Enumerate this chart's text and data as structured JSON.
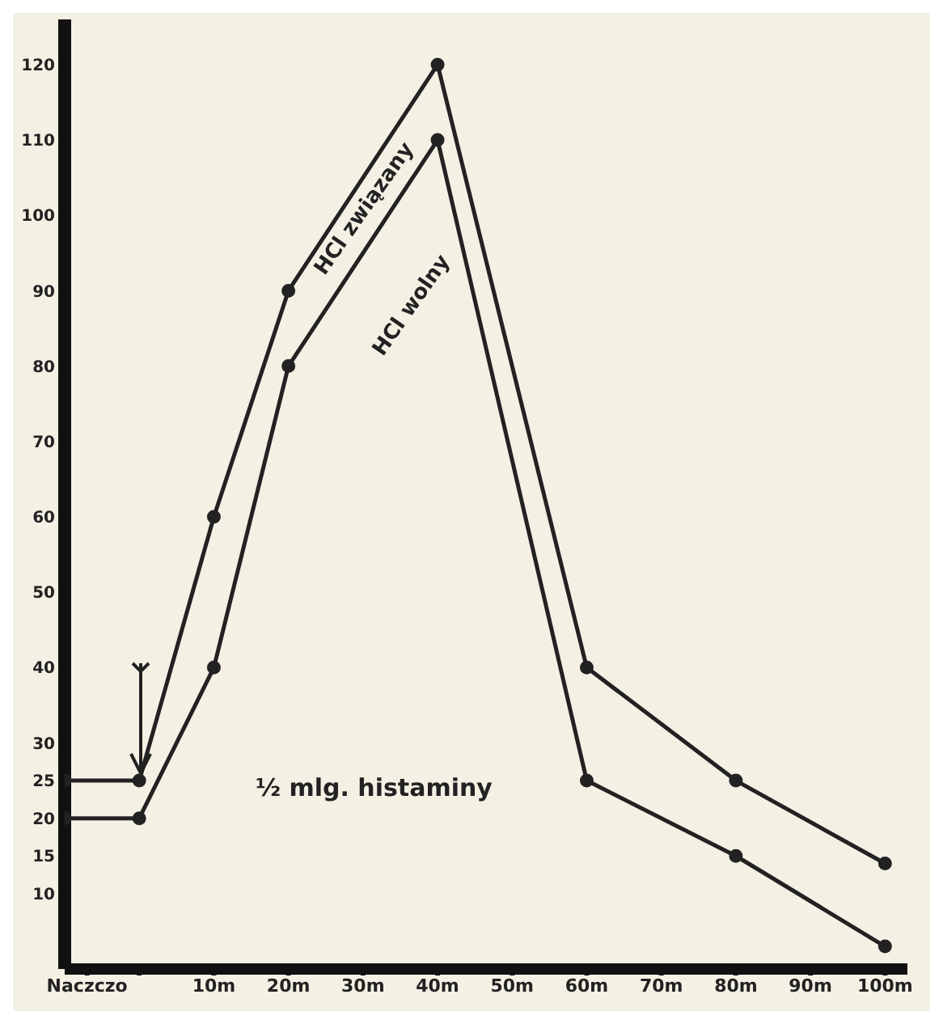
{
  "chart_data": {
    "type": "line",
    "x": [
      -10,
      0,
      10,
      20,
      40,
      60,
      80,
      100
    ],
    "xlim": [
      -10,
      103
    ],
    "xticks": [
      {
        "value": -7,
        "label": "Naczczo"
      },
      {
        "value": 0,
        "label": null
      },
      {
        "value": 10,
        "label": "10m"
      },
      {
        "value": 20,
        "label": "20m"
      },
      {
        "value": 30,
        "label": "30m"
      },
      {
        "value": 40,
        "label": "40m"
      },
      {
        "value": 50,
        "label": "50m"
      },
      {
        "value": 60,
        "label": "60m"
      },
      {
        "value": 70,
        "label": "70m"
      },
      {
        "value": 80,
        "label": "80m"
      },
      {
        "value": 90,
        "label": "90m"
      },
      {
        "value": 100,
        "label": "100m"
      }
    ],
    "ylim": [
      0,
      126
    ],
    "yticks": [
      10,
      15,
      20,
      25,
      30,
      40,
      50,
      60,
      70,
      80,
      90,
      100,
      110,
      120
    ],
    "series": [
      {
        "name": "HCl związany",
        "color": "#222222",
        "values": [
          25,
          25,
          60,
          90,
          120,
          40,
          25,
          14
        ]
      },
      {
        "name": "HCl wolny",
        "color": "#222222",
        "values": [
          20,
          20,
          40,
          80,
          110,
          25,
          15,
          3
        ]
      }
    ],
    "annotations": [
      "½ mlg. histaminy"
    ],
    "marker": "circle",
    "line_style": "solid"
  }
}
